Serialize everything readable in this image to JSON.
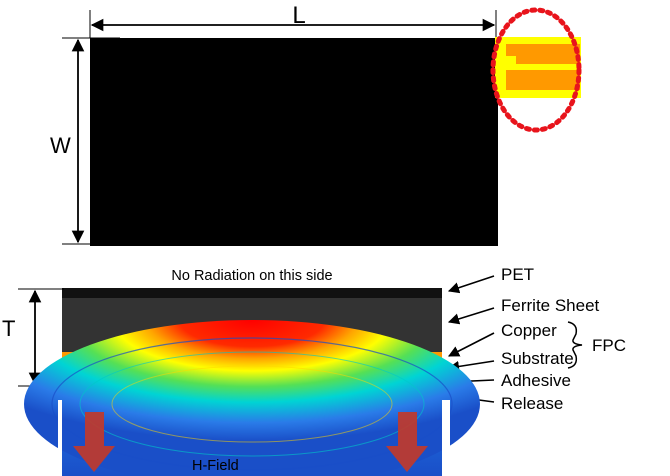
{
  "labels": {
    "length": "L",
    "width": "W",
    "thickness": "T",
    "no_radiation": "No Radiation on this side",
    "h_field": "H-Field",
    "fpc": "FPC"
  },
  "layers": [
    {
      "name": "PET",
      "color": "#111111"
    },
    {
      "name": "Ferrite Sheet",
      "color": "#333333"
    },
    {
      "name": "Copper",
      "color": "#FF9900"
    },
    {
      "name": "Substrate",
      "color": "#FFFF00"
    },
    {
      "name": "Adhesive",
      "color": "#808080"
    },
    {
      "name": "Release",
      "color": "#FBCB9C"
    }
  ],
  "colors": {
    "sheet": "#000000",
    "pad_outer": "#FFFF00",
    "pad_inner": "#FF9900",
    "highlight_circle": "#E8141C",
    "field_arrow": "#C0392B"
  }
}
